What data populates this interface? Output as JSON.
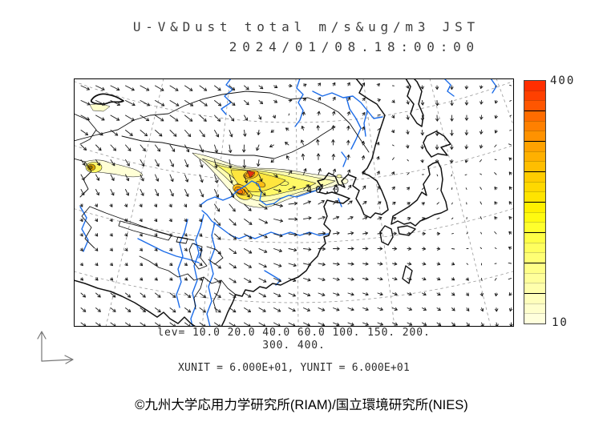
{
  "title": {
    "line1": "U-V&Dust total m/s&ug/m3 JST",
    "line2": "2024/01/08.18:00:00"
  },
  "colorbar": {
    "max_label": "400",
    "min_label": "10",
    "colors_bottom_to_top": [
      "#FFFFDC",
      "#FFFFCC",
      "#FFFFBC",
      "#FFFFAC",
      "#FFFF9A",
      "#FFFF88",
      "#FFFF74",
      "#FFFF5E",
      "#FFFF46",
      "#FFFF2C",
      "#FFFA10",
      "#FFF000",
      "#FFE400",
      "#FFD800",
      "#FFCC00",
      "#FFBE00",
      "#FFB000",
      "#FFA200",
      "#FF9200",
      "#FF8000",
      "#FF6C00",
      "#FF5600",
      "#FF4000",
      "#FF2E00"
    ]
  },
  "levels": {
    "line1": "lev= 10.0 20.0 40.0 60.0 100. 150. 200.",
    "line2": "300. 400."
  },
  "units_line": "XUNIT = 6.000E+01, YUNIT = 6.000E+01",
  "copyright": "©九州大学応用力学研究所(RIAM)/国立環境研究所(NIES)",
  "map": {
    "contour_label": "40.0",
    "contour_levels": [
      10,
      20,
      40,
      60,
      100,
      150,
      200,
      300,
      400
    ],
    "contour_fill_colors": {
      "10": "#FFFFD6",
      "20": "#FFFFAE",
      "40": "#FFF966",
      "60": "#FFE53E",
      "100": "#FFBE14",
      "150": "#FF9C00",
      "200": "#FF7600",
      "300": "#FF4000",
      "400": "#E8320E"
    },
    "coast_color": "#111111",
    "river_color": "#1c6ce8",
    "grid_color": "#999999",
    "wind_color": "#1a1a1a"
  }
}
